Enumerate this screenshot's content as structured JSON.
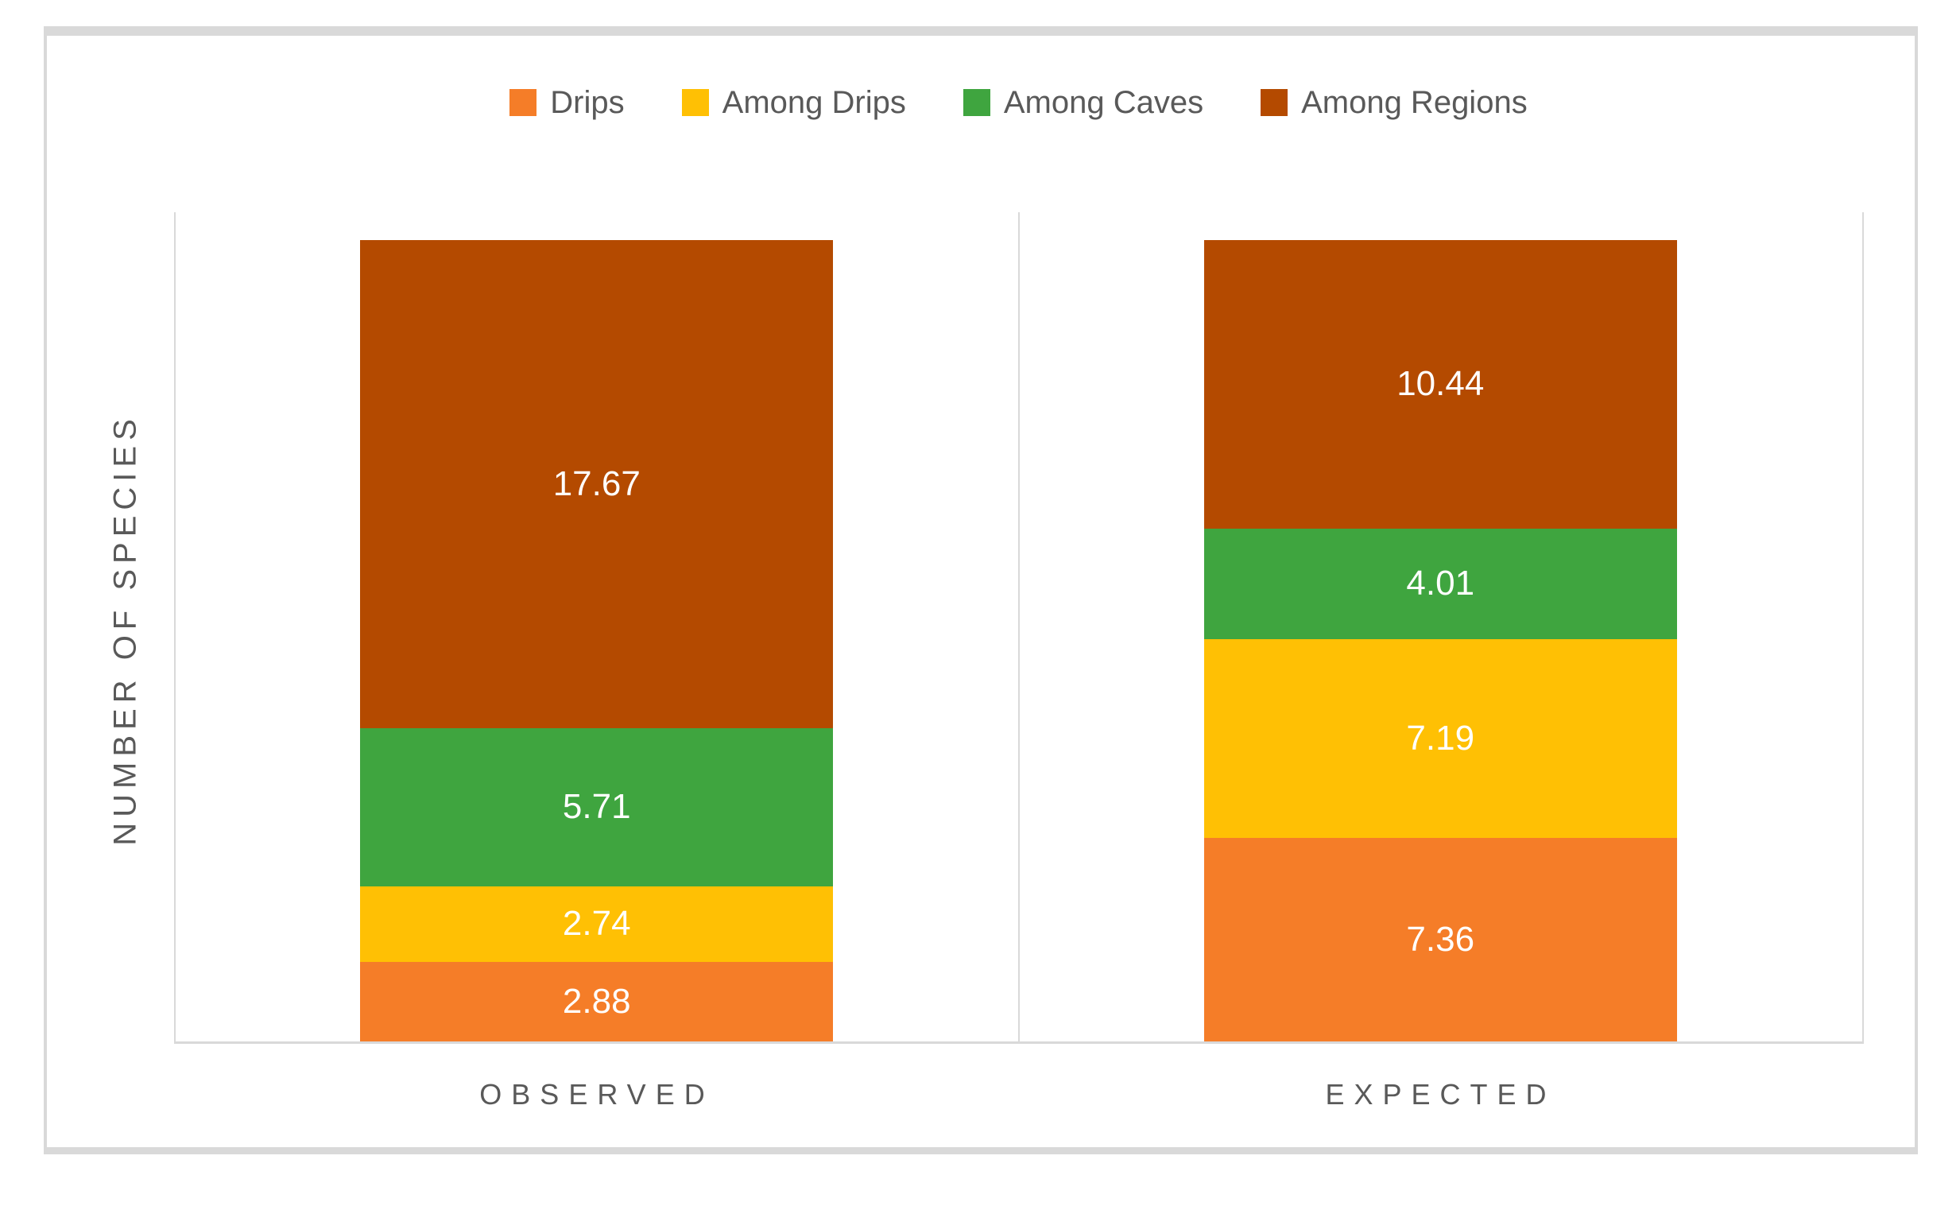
{
  "chart_data": {
    "type": "bar",
    "stacked": true,
    "orientation": "vertical",
    "categories": [
      "OBSERVED",
      "EXPECTED"
    ],
    "series": [
      {
        "name": "Drips",
        "color": "#F57D28",
        "values": [
          2.88,
          7.36
        ]
      },
      {
        "name": "Among Drips",
        "color": "#FFC004",
        "values": [
          2.74,
          7.19
        ]
      },
      {
        "name": "Among Caves",
        "color": "#3FA53F",
        "values": [
          5.71,
          4.01
        ]
      },
      {
        "name": "Among Regions",
        "color": "#B44A00",
        "values": [
          17.67,
          10.44
        ]
      }
    ],
    "title": "",
    "xlabel": "",
    "ylabel": "NUMBER OF SPECIES",
    "ylim": [
      0,
      30
    ],
    "gridlines": false,
    "legend_position": "top",
    "data_labels": "centered on each segment, 2 decimal places",
    "category_totals": [
      29.0,
      29.0
    ]
  },
  "styles": {
    "background": "#FFFFFF",
    "frame_border_color": "#D9D9D9",
    "axis_line_color": "#D9D9D9",
    "label_text_color": "#595959",
    "data_label_color": "#FFFFFF"
  }
}
